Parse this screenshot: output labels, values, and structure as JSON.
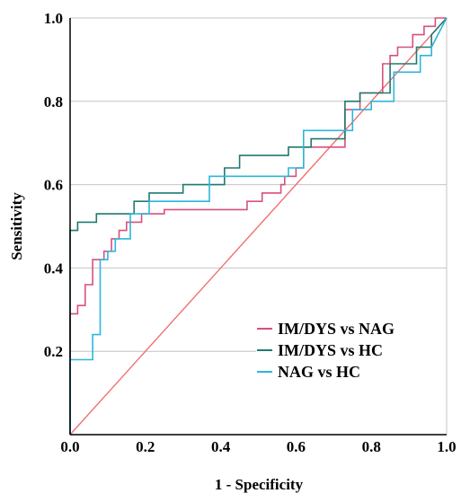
{
  "chart_data": {
    "type": "line",
    "title": "",
    "xlabel": "1 - Specificity",
    "ylabel": "Sensitivity",
    "xlim": [
      0,
      1
    ],
    "ylim": [
      0,
      1
    ],
    "x_ticks": [
      "0.0",
      "0.2",
      "0.4",
      "0.6",
      "0.8",
      "1.0"
    ],
    "y_ticks": [
      "0.2",
      "0.4",
      "0.6",
      "0.8",
      "1.0"
    ],
    "x_tick_values": [
      0,
      0.2,
      0.4,
      0.6,
      0.8,
      1.0
    ],
    "y_tick_values": [
      0.2,
      0.4,
      0.6,
      0.8,
      1.0
    ],
    "grid": "horizontal",
    "legend_position": "bottom-right",
    "reference_line": {
      "x": [
        0,
        1
      ],
      "y": [
        0,
        1
      ],
      "color": "#f07070"
    },
    "series": [
      {
        "name": "IM/DYS vs NAG",
        "color": "#d9507a",
        "x": [
          0,
          0,
          0.02,
          0.02,
          0.04,
          0.04,
          0.06,
          0.06,
          0.09,
          0.09,
          0.11,
          0.11,
          0.13,
          0.13,
          0.15,
          0.15,
          0.19,
          0.19,
          0.25,
          0.25,
          0.47,
          0.47,
          0.51,
          0.51,
          0.56,
          0.56,
          0.57,
          0.57,
          0.6,
          0.6,
          0.62,
          0.62,
          0.73,
          0.73,
          0.77,
          0.77,
          0.83,
          0.83,
          0.85,
          0.85,
          0.87,
          0.87,
          0.91,
          0.91,
          0.94,
          0.94,
          0.97,
          0.97,
          1
        ],
        "y": [
          0,
          0.29,
          0.29,
          0.31,
          0.31,
          0.36,
          0.36,
          0.42,
          0.42,
          0.44,
          0.44,
          0.47,
          0.47,
          0.49,
          0.49,
          0.51,
          0.51,
          0.53,
          0.53,
          0.54,
          0.54,
          0.56,
          0.56,
          0.58,
          0.58,
          0.6,
          0.6,
          0.62,
          0.62,
          0.64,
          0.64,
          0.69,
          0.69,
          0.78,
          0.78,
          0.82,
          0.82,
          0.89,
          0.89,
          0.91,
          0.91,
          0.93,
          0.93,
          0.96,
          0.96,
          0.98,
          0.98,
          1,
          1
        ]
      },
      {
        "name": "IM/DYS vs HC",
        "color": "#1f7a70",
        "x": [
          0,
          0,
          0.02,
          0.02,
          0.07,
          0.07,
          0.17,
          0.17,
          0.21,
          0.21,
          0.3,
          0.3,
          0.41,
          0.41,
          0.45,
          0.45,
          0.58,
          0.58,
          0.64,
          0.64,
          0.73,
          0.73,
          0.77,
          0.77,
          0.85,
          0.85,
          0.92,
          0.92,
          0.96,
          0.96,
          1
        ],
        "y": [
          0,
          0.49,
          0.49,
          0.51,
          0.51,
          0.53,
          0.53,
          0.56,
          0.56,
          0.58,
          0.58,
          0.6,
          0.6,
          0.64,
          0.64,
          0.67,
          0.67,
          0.69,
          0.69,
          0.71,
          0.71,
          0.8,
          0.8,
          0.82,
          0.82,
          0.89,
          0.89,
          0.93,
          0.93,
          0.96,
          1
        ]
      },
      {
        "name": "NAG vs HC",
        "color": "#2db5de",
        "x": [
          0,
          0,
          0.06,
          0.06,
          0.08,
          0.08,
          0.1,
          0.1,
          0.12,
          0.12,
          0.16,
          0.16,
          0.21,
          0.21,
          0.37,
          0.37,
          0.58,
          0.58,
          0.62,
          0.62,
          0.75,
          0.75,
          0.8,
          0.8,
          0.86,
          0.86,
          0.93,
          0.93,
          0.96,
          0.96,
          1
        ],
        "y": [
          0,
          0.18,
          0.18,
          0.24,
          0.24,
          0.42,
          0.42,
          0.44,
          0.44,
          0.47,
          0.47,
          0.53,
          0.53,
          0.56,
          0.56,
          0.62,
          0.62,
          0.64,
          0.64,
          0.73,
          0.73,
          0.78,
          0.78,
          0.8,
          0.8,
          0.87,
          0.87,
          0.91,
          0.91,
          0.93,
          1
        ]
      }
    ]
  }
}
